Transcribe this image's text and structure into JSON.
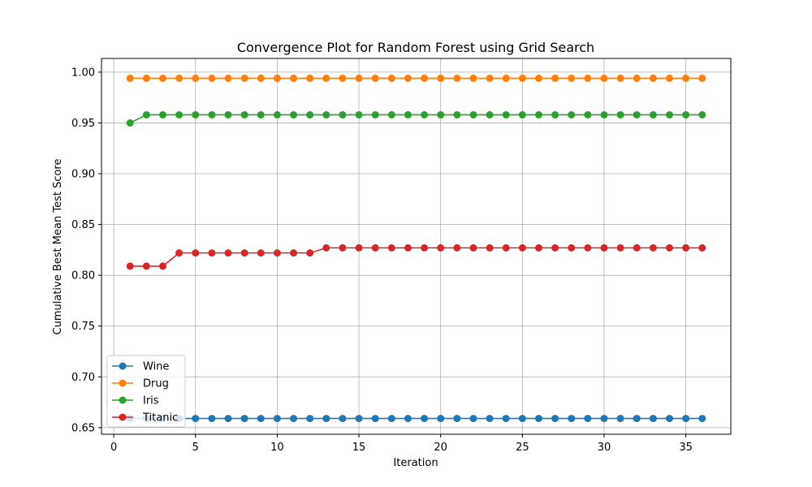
{
  "chart_data": {
    "type": "line",
    "title": "Convergence Plot for Random Forest using Grid Search",
    "xlabel": "Iteration",
    "ylabel": "Cumulative Best Mean Test Score",
    "xlim": [
      -0.75,
      37.75
    ],
    "ylim": [
      0.6435,
      1.0135
    ],
    "xticks": [
      0,
      5,
      10,
      15,
      20,
      25,
      30,
      35
    ],
    "yticks": [
      0.65,
      0.7,
      0.75,
      0.8,
      0.85,
      0.9,
      0.95,
      1.0
    ],
    "ytick_labels": [
      "0.65",
      "0.70",
      "0.75",
      "0.80",
      "0.85",
      "0.90",
      "0.95",
      "1.00"
    ],
    "grid": true,
    "legend_position": "lower-left",
    "x": [
      1,
      2,
      3,
      4,
      5,
      6,
      7,
      8,
      9,
      10,
      11,
      12,
      13,
      14,
      15,
      16,
      17,
      18,
      19,
      20,
      21,
      22,
      23,
      24,
      25,
      26,
      27,
      28,
      29,
      30,
      31,
      32,
      33,
      34,
      35,
      36
    ],
    "series": [
      {
        "name": "Wine",
        "color": "#1f77b4",
        "values": [
          0.659,
          0.659,
          0.659,
          0.659,
          0.659,
          0.659,
          0.659,
          0.659,
          0.659,
          0.659,
          0.659,
          0.659,
          0.659,
          0.659,
          0.659,
          0.659,
          0.659,
          0.659,
          0.659,
          0.659,
          0.659,
          0.659,
          0.659,
          0.659,
          0.659,
          0.659,
          0.659,
          0.659,
          0.659,
          0.659,
          0.659,
          0.659,
          0.659,
          0.659,
          0.659,
          0.659
        ]
      },
      {
        "name": "Drug",
        "color": "#ff7f0e",
        "values": [
          0.994,
          0.994,
          0.994,
          0.994,
          0.994,
          0.994,
          0.994,
          0.994,
          0.994,
          0.994,
          0.994,
          0.994,
          0.994,
          0.994,
          0.994,
          0.994,
          0.994,
          0.994,
          0.994,
          0.994,
          0.994,
          0.994,
          0.994,
          0.994,
          0.994,
          0.994,
          0.994,
          0.994,
          0.994,
          0.994,
          0.994,
          0.994,
          0.994,
          0.994,
          0.994,
          0.994
        ]
      },
      {
        "name": "Iris",
        "color": "#2ca02c",
        "values": [
          0.95,
          0.958,
          0.958,
          0.958,
          0.958,
          0.958,
          0.958,
          0.958,
          0.958,
          0.958,
          0.958,
          0.958,
          0.958,
          0.958,
          0.958,
          0.958,
          0.958,
          0.958,
          0.958,
          0.958,
          0.958,
          0.958,
          0.958,
          0.958,
          0.958,
          0.958,
          0.958,
          0.958,
          0.958,
          0.958,
          0.958,
          0.958,
          0.958,
          0.958,
          0.958,
          0.958
        ]
      },
      {
        "name": "Titanic",
        "color": "#d62728",
        "values": [
          0.809,
          0.809,
          0.809,
          0.822,
          0.822,
          0.822,
          0.822,
          0.822,
          0.822,
          0.822,
          0.822,
          0.822,
          0.827,
          0.827,
          0.827,
          0.827,
          0.827,
          0.827,
          0.827,
          0.827,
          0.827,
          0.827,
          0.827,
          0.827,
          0.827,
          0.827,
          0.827,
          0.827,
          0.827,
          0.827,
          0.827,
          0.827,
          0.827,
          0.827,
          0.827,
          0.827
        ]
      }
    ]
  }
}
